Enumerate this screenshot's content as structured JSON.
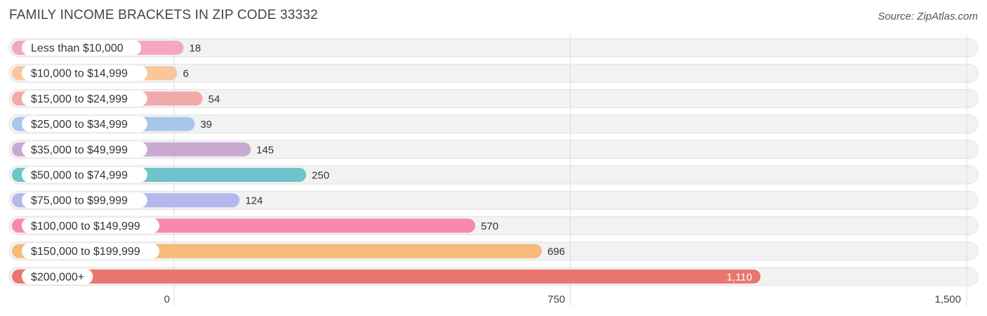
{
  "title": "FAMILY INCOME BRACKETS IN ZIP CODE 33332",
  "source": "Source: ZipAtlas.com",
  "chart_data": {
    "type": "bar",
    "orientation": "horizontal",
    "categories": [
      "Less than $10,000",
      "$10,000 to $14,999",
      "$15,000 to $24,999",
      "$25,000 to $34,999",
      "$35,000 to $49,999",
      "$50,000 to $74,999",
      "$75,000 to $99,999",
      "$100,000 to $149,999",
      "$150,000 to $199,999",
      "$200,000+"
    ],
    "values": [
      18,
      6,
      54,
      39,
      145,
      250,
      124,
      570,
      696,
      1110
    ],
    "value_labels": [
      "18",
      "6",
      "54",
      "39",
      "145",
      "250",
      "124",
      "570",
      "696",
      "1,110"
    ],
    "colors": [
      "#f5a6c4",
      "#f9c79b",
      "#f1a9a9",
      "#a9c6ec",
      "#c9a9d0",
      "#6ec4ca",
      "#b5b8ec",
      "#f78aab",
      "#f9b97a",
      "#e8766f"
    ],
    "xlim": [
      0,
      1500
    ],
    "xticks": [
      0,
      750,
      1500
    ],
    "xtick_labels": [
      "0",
      "750",
      "1,500"
    ],
    "grid": true,
    "xlabel": "",
    "ylabel": ""
  }
}
